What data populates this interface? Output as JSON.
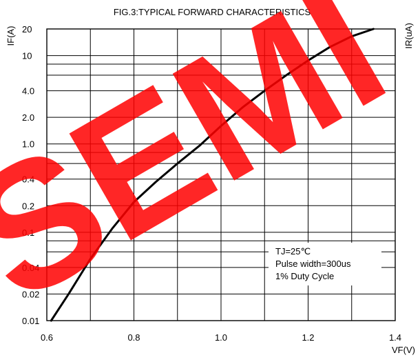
{
  "chart_data": {
    "type": "line",
    "title": "FIG.3:TYPICAL FORWARD CHARACTERISTICS",
    "xlabel": "VF(V)",
    "ylabel": "IF(A)",
    "ylabel_right": "IR(uA)",
    "x_scale": "linear",
    "y_scale": "log",
    "xlim": [
      0.6,
      1.4
    ],
    "ylim": [
      0.01,
      20
    ],
    "x_ticks": [
      {
        "value": 0.6,
        "label": "0.6"
      },
      {
        "value": 0.8,
        "label": "0.8"
      },
      {
        "value": 1.0,
        "label": "1.0"
      },
      {
        "value": 1.2,
        "label": "1.2"
      },
      {
        "value": 1.4,
        "label": "1.4"
      }
    ],
    "y_ticks": [
      {
        "value": 0.01,
        "label": "0.01"
      },
      {
        "value": 0.02,
        "label": "0.02"
      },
      {
        "value": 0.04,
        "label": "0.04"
      },
      {
        "value": 0.1,
        "label": "0.1"
      },
      {
        "value": 0.2,
        "label": "0.2"
      },
      {
        "value": 0.4,
        "label": "0.4"
      },
      {
        "value": 1.0,
        "label": "1.0"
      },
      {
        "value": 2.0,
        "label": "2.0"
      },
      {
        "value": 4.0,
        "label": "4.0"
      },
      {
        "value": 10,
        "label": "10"
      },
      {
        "value": 20,
        "label": "20"
      }
    ],
    "h_gridlines": [
      0.01,
      0.02,
      0.04,
      0.06,
      0.08,
      0.1,
      0.2,
      0.4,
      0.6,
      0.8,
      1.0,
      2.0,
      4.0,
      6.0,
      8.0,
      10,
      20
    ],
    "v_gridlines": [
      0.6,
      0.7,
      0.8,
      0.9,
      1.0,
      1.1,
      1.2,
      1.3,
      1.4
    ],
    "grid": true,
    "series": [
      {
        "color": "#000000",
        "x": [
          0.61,
          0.65,
          0.7,
          0.75,
          0.8,
          0.85,
          0.9,
          0.95,
          1.0,
          1.05,
          1.1,
          1.15,
          1.2,
          1.25,
          1.3,
          1.35
        ],
        "y": [
          0.01,
          0.02,
          0.05,
          0.11,
          0.22,
          0.37,
          0.6,
          0.95,
          1.6,
          2.6,
          4.0,
          6.0,
          8.8,
          12.5,
          16.5,
          20
        ]
      }
    ],
    "annotations": [
      "TJ=25℃",
      "Pulse width=300us",
      "1% Duty Cycle"
    ],
    "watermark": "SEMI",
    "watermark_color": "#ff0000"
  }
}
